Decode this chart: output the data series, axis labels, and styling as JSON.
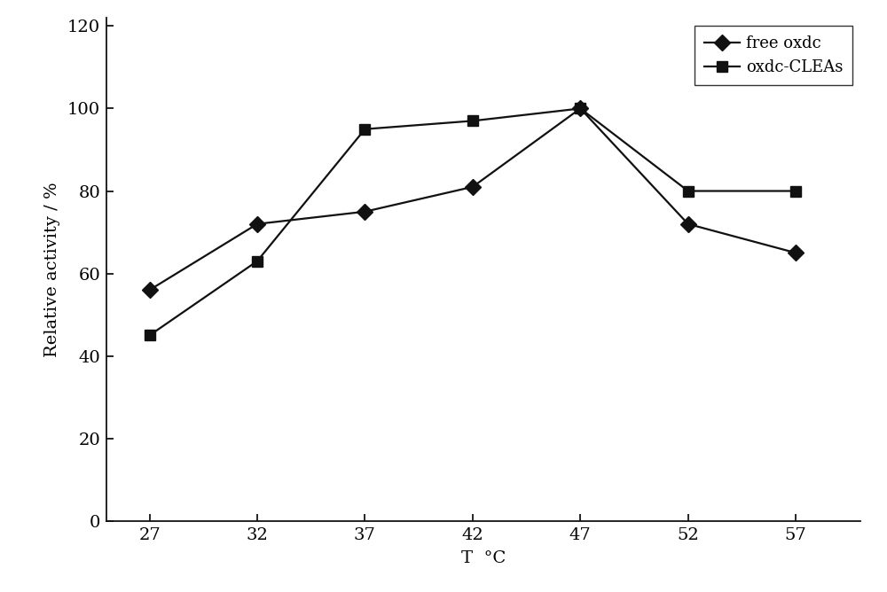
{
  "x": [
    27,
    32,
    37,
    42,
    47,
    52,
    57
  ],
  "free_oxdc": [
    56,
    72,
    75,
    81,
    100,
    72,
    65
  ],
  "oxdc_cleas": [
    45,
    63,
    95,
    97,
    100,
    80,
    80
  ],
  "xlabel": "T  °C",
  "ylabel": "Relative activity / %",
  "legend_free": "free oxdc",
  "legend_cleas": "oxdc-CLEAs",
  "ylim": [
    0,
    122
  ],
  "xlim": [
    25,
    60
  ],
  "yticks": [
    0,
    20,
    40,
    60,
    80,
    100,
    120
  ],
  "xticks": [
    27,
    32,
    37,
    42,
    47,
    52,
    57
  ],
  "line_color": "#111111",
  "bg_color": "#ffffff",
  "axis_fontsize": 14,
  "tick_fontsize": 14,
  "legend_fontsize": 13,
  "linewidth": 1.6,
  "markersize": 9
}
